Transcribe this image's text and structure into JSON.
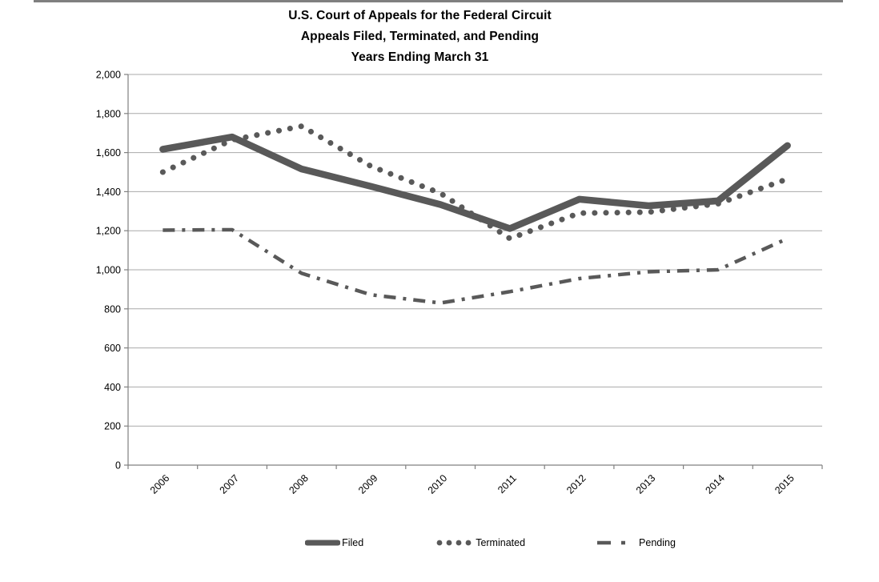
{
  "title": {
    "line1": "U.S. Court of Appeals for the Federal Circuit",
    "line2": "Appeals Filed, Terminated, and Pending",
    "line3": "Years Ending March 31"
  },
  "chart_data": {
    "type": "line",
    "categories": [
      "2006",
      "2007",
      "2008",
      "2009",
      "2010",
      "2011",
      "2012",
      "2013",
      "2014",
      "2015"
    ],
    "series": [
      {
        "name": "Filed",
        "line_style": "solid-thick",
        "values": [
          1617,
          1680,
          1516,
          1427,
          1334,
          1211,
          1361,
          1328,
          1353,
          1636
        ]
      },
      {
        "name": "Terminated",
        "line_style": "dotted",
        "values": [
          1500,
          1665,
          1735,
          1530,
          1392,
          1160,
          1290,
          1295,
          1338,
          1465
        ]
      },
      {
        "name": "Pending",
        "line_style": "dash-dot",
        "values": [
          1203,
          1205,
          982,
          872,
          830,
          888,
          955,
          990,
          1000,
          1160
        ]
      }
    ],
    "ylim": [
      0,
      2000
    ],
    "ytick_interval": 200,
    "ytick_labels": [
      "0",
      "200",
      "400",
      "600",
      "800",
      "1,000",
      "1,200",
      "1,400",
      "1,600",
      "1,800",
      "2,000"
    ],
    "grid": true,
    "legend_position": "bottom",
    "xlabel": "",
    "ylabel": "",
    "colors": {
      "series": "#595959",
      "gridline": "#a9a9a9",
      "axis": "#808080",
      "text": "#000000"
    }
  }
}
